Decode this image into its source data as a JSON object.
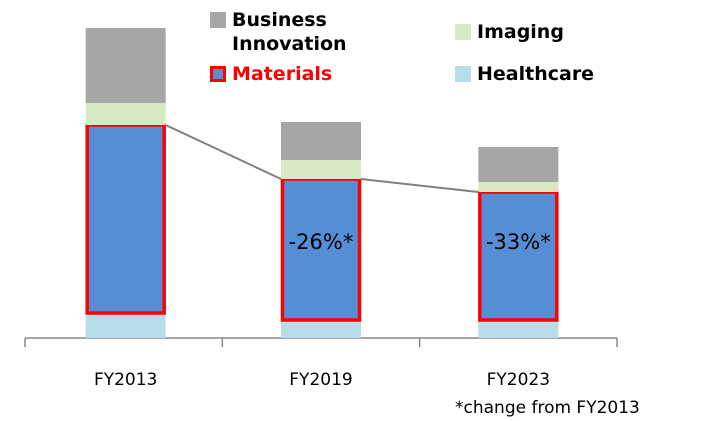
{
  "chart_data": {
    "type": "stacked-bar",
    "categories": [
      "FY2013",
      "FY2019",
      "FY2023"
    ],
    "series": [
      {
        "name": "Healthcare",
        "color": "#b7dde8",
        "values": [
          25,
          18,
          18
        ]
      },
      {
        "name": "Materials",
        "color": "#558ed5",
        "outline": "#ff0000",
        "values": [
          188,
          141,
          128
        ]
      },
      {
        "name": "Imaging",
        "color": "#d9e8c4",
        "values": [
          22,
          19,
          10
        ]
      },
      {
        "name": "Business Innovation",
        "color": "#a6a6a6",
        "values": [
          75,
          38,
          35
        ]
      }
    ],
    "ylim": [
      0,
      310
    ],
    "annotations": [
      "-26%*",
      "-33%*"
    ],
    "footnote": "*change from FY2013"
  }
}
